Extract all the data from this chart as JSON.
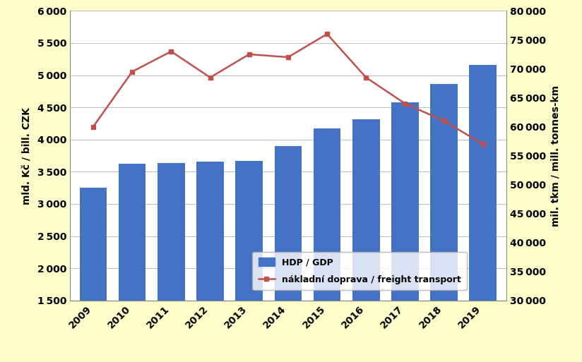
{
  "years": [
    2009,
    2010,
    2011,
    2012,
    2013,
    2014,
    2015,
    2016,
    2017,
    2018,
    2019
  ],
  "gdp": [
    3250,
    3620,
    3640,
    3660,
    3670,
    3900,
    4170,
    4320,
    4580,
    4860,
    5160
  ],
  "freight": [
    60000,
    69500,
    73000,
    68500,
    72500,
    72000,
    76000,
    68500,
    64000,
    61000,
    57000
  ],
  "bar_color": "#4472c4",
  "line_color": "#c0504d",
  "background_color": "#ffffcc",
  "plot_background": "#ffffff",
  "ylabel_left": "mld. Kč / bill. CZK",
  "ylabel_right": "mil. tkm / mill. tonnes-km",
  "ylim_left": [
    1500,
    6000
  ],
  "ylim_right": [
    30000,
    80000
  ],
  "yticks_left": [
    1500,
    2000,
    2500,
    3000,
    3500,
    4000,
    4500,
    5000,
    5500,
    6000
  ],
  "yticks_right": [
    30000,
    35000,
    40000,
    45000,
    50000,
    55000,
    60000,
    65000,
    70000,
    75000,
    80000
  ],
  "legend_bar_label": "HDP / GDP",
  "legend_line_label": "nákladní doprava / freight transport",
  "grid_color": "#bbbbbb",
  "tick_label_fontsize": 10,
  "axis_label_fontsize": 10
}
